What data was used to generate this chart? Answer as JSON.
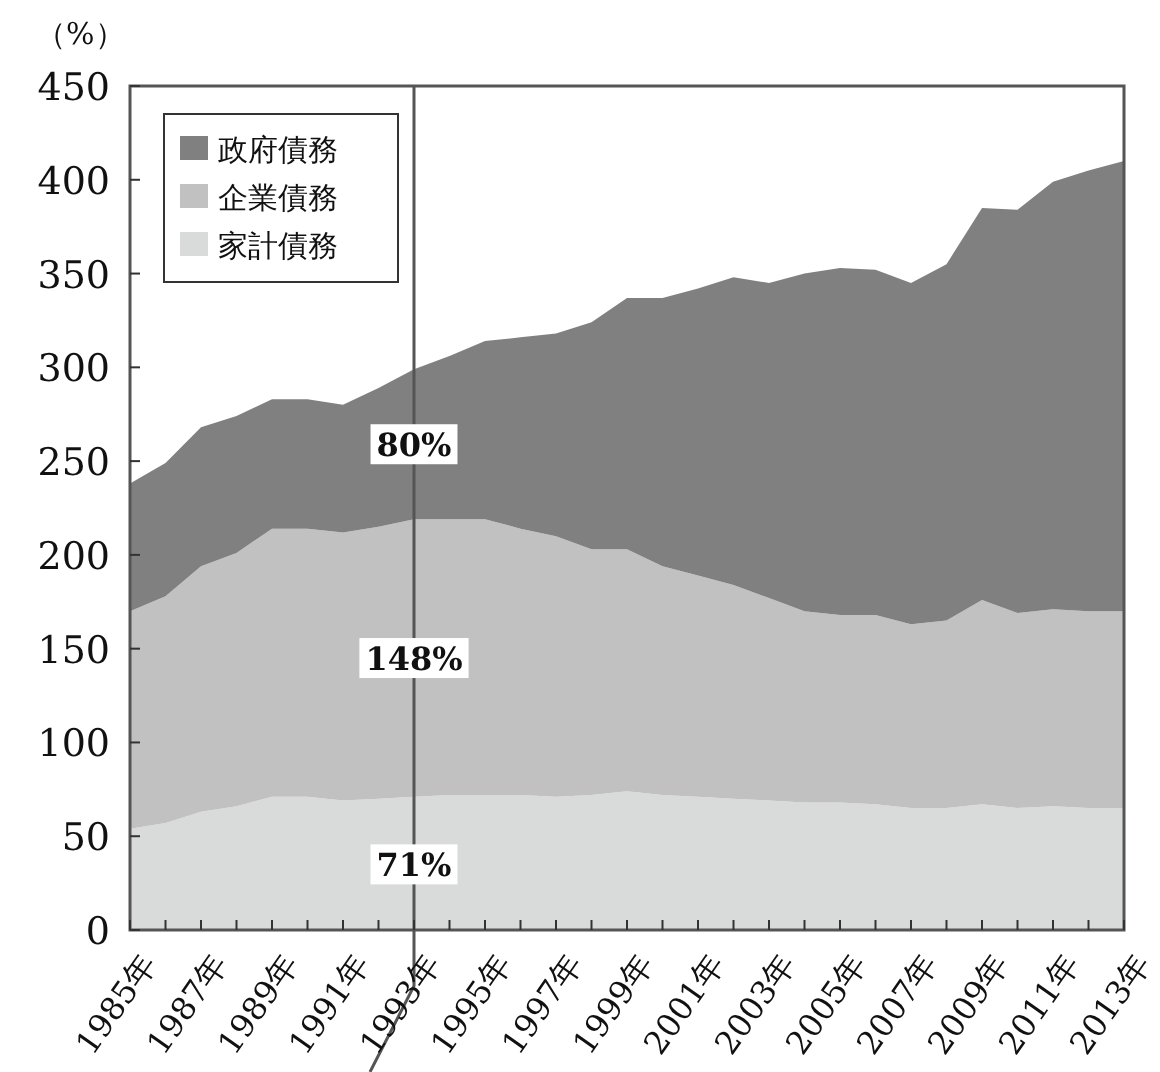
{
  "chart_data": {
    "type": "area",
    "stacked": true,
    "ylabel": "（%）",
    "x": [
      1985,
      1986,
      1987,
      1988,
      1989,
      1990,
      1991,
      1992,
      1993,
      1994,
      1995,
      1996,
      1997,
      1998,
      1999,
      2000,
      2001,
      2002,
      2003,
      2004,
      2005,
      2006,
      2007,
      2008,
      2009,
      2010,
      2011,
      2012,
      2013
    ],
    "series": [
      {
        "name": "家計債務",
        "color": "#d9dbdb",
        "values": [
          54,
          57,
          63,
          66,
          71,
          71,
          69,
          70,
          71,
          72,
          72,
          72,
          71,
          72,
          74,
          72,
          71,
          70,
          69,
          68,
          68,
          67,
          65,
          65,
          67,
          65,
          66,
          65,
          65
        ]
      },
      {
        "name": "企業債務",
        "color": "#c1c1c1",
        "values": [
          116,
          121,
          131,
          135,
          143,
          143,
          143,
          145,
          148,
          147,
          147,
          142,
          139,
          131,
          129,
          122,
          118,
          114,
          108,
          102,
          100,
          101,
          98,
          100,
          109,
          104,
          105,
          105,
          105
        ]
      },
      {
        "name": "政府債務",
        "color": "#808080",
        "values": [
          68,
          71,
          74,
          73,
          69,
          69,
          68,
          74,
          80,
          87,
          95,
          102,
          108,
          121,
          134,
          143,
          153,
          164,
          168,
          180,
          185,
          184,
          182,
          190,
          209,
          215,
          228,
          235,
          240
        ]
      }
    ],
    "xlim": [
      1985,
      2013
    ],
    "xticks": [
      {
        "value": 1985,
        "label": "1985年"
      },
      {
        "value": 1986,
        "label": null
      },
      {
        "value": 1987,
        "label": "1987年"
      },
      {
        "value": 1988,
        "label": null
      },
      {
        "value": 1989,
        "label": "1989年"
      },
      {
        "value": 1990,
        "label": null
      },
      {
        "value": 1991,
        "label": "1991年"
      },
      {
        "value": 1992,
        "label": null
      },
      {
        "value": 1993,
        "label": "1993年"
      },
      {
        "value": 1994,
        "label": null
      },
      {
        "value": 1995,
        "label": "1995年"
      },
      {
        "value": 1996,
        "label": null
      },
      {
        "value": 1997,
        "label": "1997年"
      },
      {
        "value": 1998,
        "label": null
      },
      {
        "value": 1999,
        "label": "1999年"
      },
      {
        "value": 2000,
        "label": null
      },
      {
        "value": 2001,
        "label": "2001年"
      },
      {
        "value": 2002,
        "label": null
      },
      {
        "value": 2003,
        "label": "2003年"
      },
      {
        "value": 2004,
        "label": null
      },
      {
        "value": 2005,
        "label": "2005年"
      },
      {
        "value": 2006,
        "label": null
      },
      {
        "value": 2007,
        "label": "2007年"
      },
      {
        "value": 2008,
        "label": null
      },
      {
        "value": 2009,
        "label": "2009年"
      },
      {
        "value": 2010,
        "label": null
      },
      {
        "value": 2011,
        "label": "2011年"
      },
      {
        "value": 2012,
        "label": null
      },
      {
        "value": 2013,
        "label": "2013年"
      }
    ],
    "ylim": [
      0,
      450
    ],
    "yticks": [
      0,
      50,
      100,
      150,
      200,
      250,
      300,
      350,
      400,
      450
    ],
    "ref_lines": [
      {
        "axis": "x",
        "value": 1993,
        "color": "#555555"
      }
    ],
    "annotations": [
      {
        "text": "80%",
        "y": 259
      },
      {
        "text": "148%",
        "y": 145
      },
      {
        "text": "71%",
        "y": 35
      }
    ],
    "legend": "top left",
    "grid": false
  }
}
